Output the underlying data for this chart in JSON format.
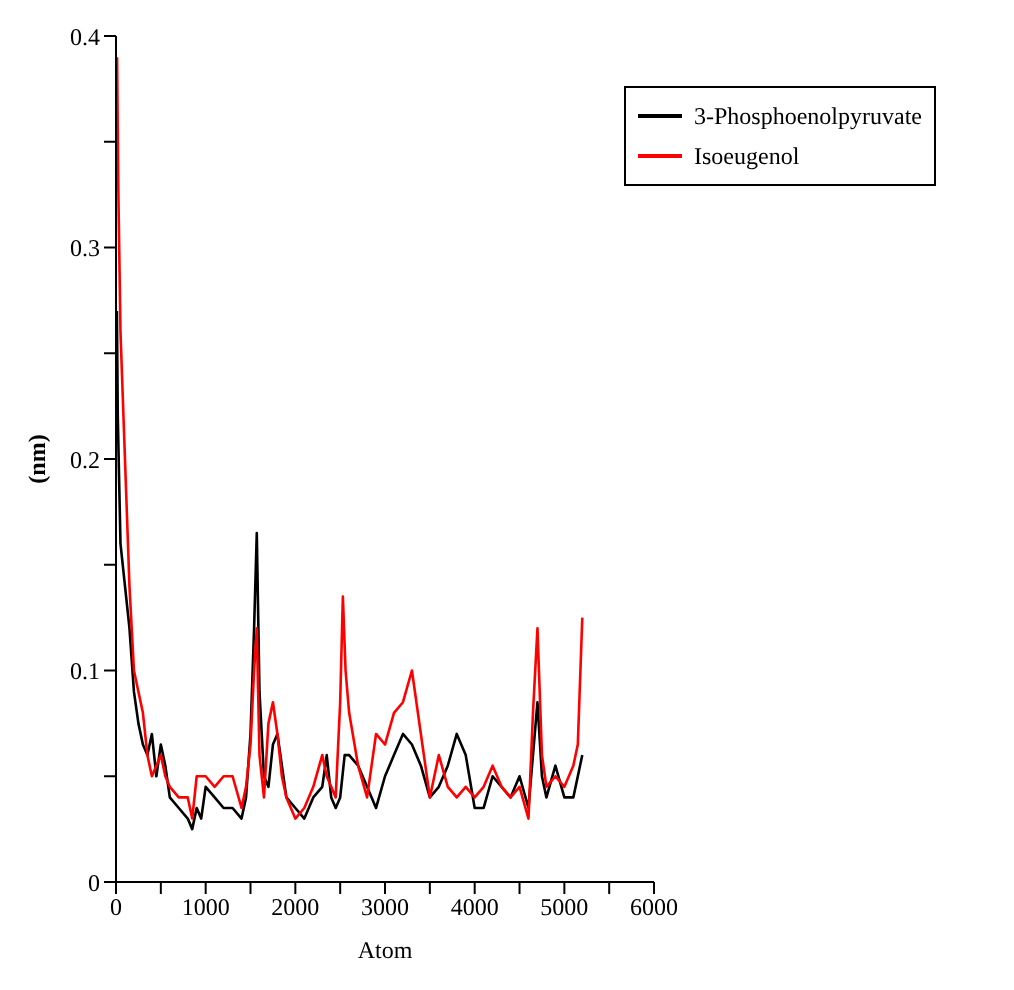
{
  "chart_data": {
    "type": "line",
    "xlabel": "Atom",
    "ylabel": "(nm)",
    "xlim": [
      0,
      6000
    ],
    "ylim": [
      0,
      0.4
    ],
    "xticks": [
      0,
      {
        "value": 500,
        "label": null
      },
      1000,
      {
        "value": 1500,
        "label": null
      },
      2000,
      {
        "value": 2500,
        "label": null
      },
      3000,
      {
        "value": 3500,
        "label": null
      },
      4000,
      {
        "value": 4500,
        "label": null
      },
      5000,
      {
        "value": 5500,
        "label": null
      },
      6000
    ],
    "yticks": [
      0,
      {
        "value": 0.05,
        "label": null
      },
      0.1,
      {
        "value": 0.15,
        "label": null
      },
      0.2,
      {
        "value": 0.25,
        "label": null
      },
      0.3,
      {
        "value": 0.35,
        "label": null
      },
      0.4
    ],
    "legend": "top right",
    "grid": false,
    "marker": "none",
    "line_style": "solid",
    "series": [
      {
        "name": "3-Phosphoenolpyruvate",
        "color": "#000000",
        "x": [
          10,
          20,
          50,
          100,
          150,
          200,
          250,
          300,
          350,
          400,
          450,
          500,
          550,
          600,
          700,
          800,
          850,
          900,
          950,
          1000,
          1100,
          1200,
          1300,
          1400,
          1450,
          1500,
          1540,
          1570,
          1600,
          1650,
          1700,
          1750,
          1800,
          1850,
          1900,
          2000,
          2100,
          2200,
          2300,
          2350,
          2400,
          2450,
          2500,
          2550,
          2600,
          2700,
          2800,
          2900,
          3000,
          3100,
          3200,
          3300,
          3400,
          3500,
          3600,
          3700,
          3800,
          3900,
          4000,
          4100,
          4200,
          4300,
          4400,
          4500,
          4600,
          4650,
          4700,
          4750,
          4800,
          4900,
          5000,
          5100,
          5200
        ],
        "values": [
          0.27,
          0.22,
          0.16,
          0.14,
          0.12,
          0.09,
          0.075,
          0.065,
          0.06,
          0.07,
          0.05,
          0.065,
          0.055,
          0.04,
          0.035,
          0.03,
          0.025,
          0.035,
          0.03,
          0.045,
          0.04,
          0.035,
          0.035,
          0.03,
          0.04,
          0.07,
          0.12,
          0.165,
          0.09,
          0.05,
          0.045,
          0.065,
          0.07,
          0.055,
          0.04,
          0.035,
          0.03,
          0.04,
          0.045,
          0.06,
          0.04,
          0.035,
          0.04,
          0.06,
          0.06,
          0.055,
          0.045,
          0.035,
          0.05,
          0.06,
          0.07,
          0.065,
          0.055,
          0.04,
          0.045,
          0.055,
          0.07,
          0.06,
          0.035,
          0.035,
          0.05,
          0.045,
          0.04,
          0.05,
          0.035,
          0.06,
          0.085,
          0.05,
          0.04,
          0.055,
          0.04,
          0.04,
          0.06
        ]
      },
      {
        "name": "Isoeugenol",
        "color": "#ff0000",
        "x": [
          12,
          25,
          50,
          100,
          150,
          200,
          250,
          300,
          350,
          400,
          450,
          500,
          550,
          600,
          700,
          800,
          850,
          900,
          1000,
          1100,
          1200,
          1300,
          1400,
          1450,
          1500,
          1540,
          1570,
          1600,
          1650,
          1700,
          1750,
          1800,
          1850,
          1900,
          2000,
          2100,
          2200,
          2300,
          2350,
          2400,
          2450,
          2500,
          2530,
          2560,
          2600,
          2700,
          2800,
          2900,
          3000,
          3100,
          3200,
          3300,
          3400,
          3500,
          3600,
          3700,
          3800,
          3900,
          4000,
          4100,
          4200,
          4300,
          4400,
          4500,
          4600,
          4650,
          4700,
          4750,
          4800,
          4900,
          5000,
          5100,
          5150,
          5200
        ],
        "values": [
          0.39,
          0.33,
          0.26,
          0.2,
          0.14,
          0.1,
          0.09,
          0.08,
          0.06,
          0.05,
          0.055,
          0.06,
          0.05,
          0.045,
          0.04,
          0.04,
          0.03,
          0.05,
          0.05,
          0.045,
          0.05,
          0.05,
          0.035,
          0.045,
          0.065,
          0.1,
          0.12,
          0.06,
          0.04,
          0.075,
          0.085,
          0.07,
          0.05,
          0.04,
          0.03,
          0.035,
          0.045,
          0.06,
          0.05,
          0.045,
          0.04,
          0.085,
          0.135,
          0.1,
          0.08,
          0.055,
          0.04,
          0.07,
          0.065,
          0.08,
          0.085,
          0.1,
          0.07,
          0.04,
          0.06,
          0.045,
          0.04,
          0.045,
          0.04,
          0.045,
          0.055,
          0.045,
          0.04,
          0.045,
          0.03,
          0.08,
          0.12,
          0.06,
          0.045,
          0.05,
          0.045,
          0.055,
          0.065,
          0.125
        ]
      }
    ]
  }
}
